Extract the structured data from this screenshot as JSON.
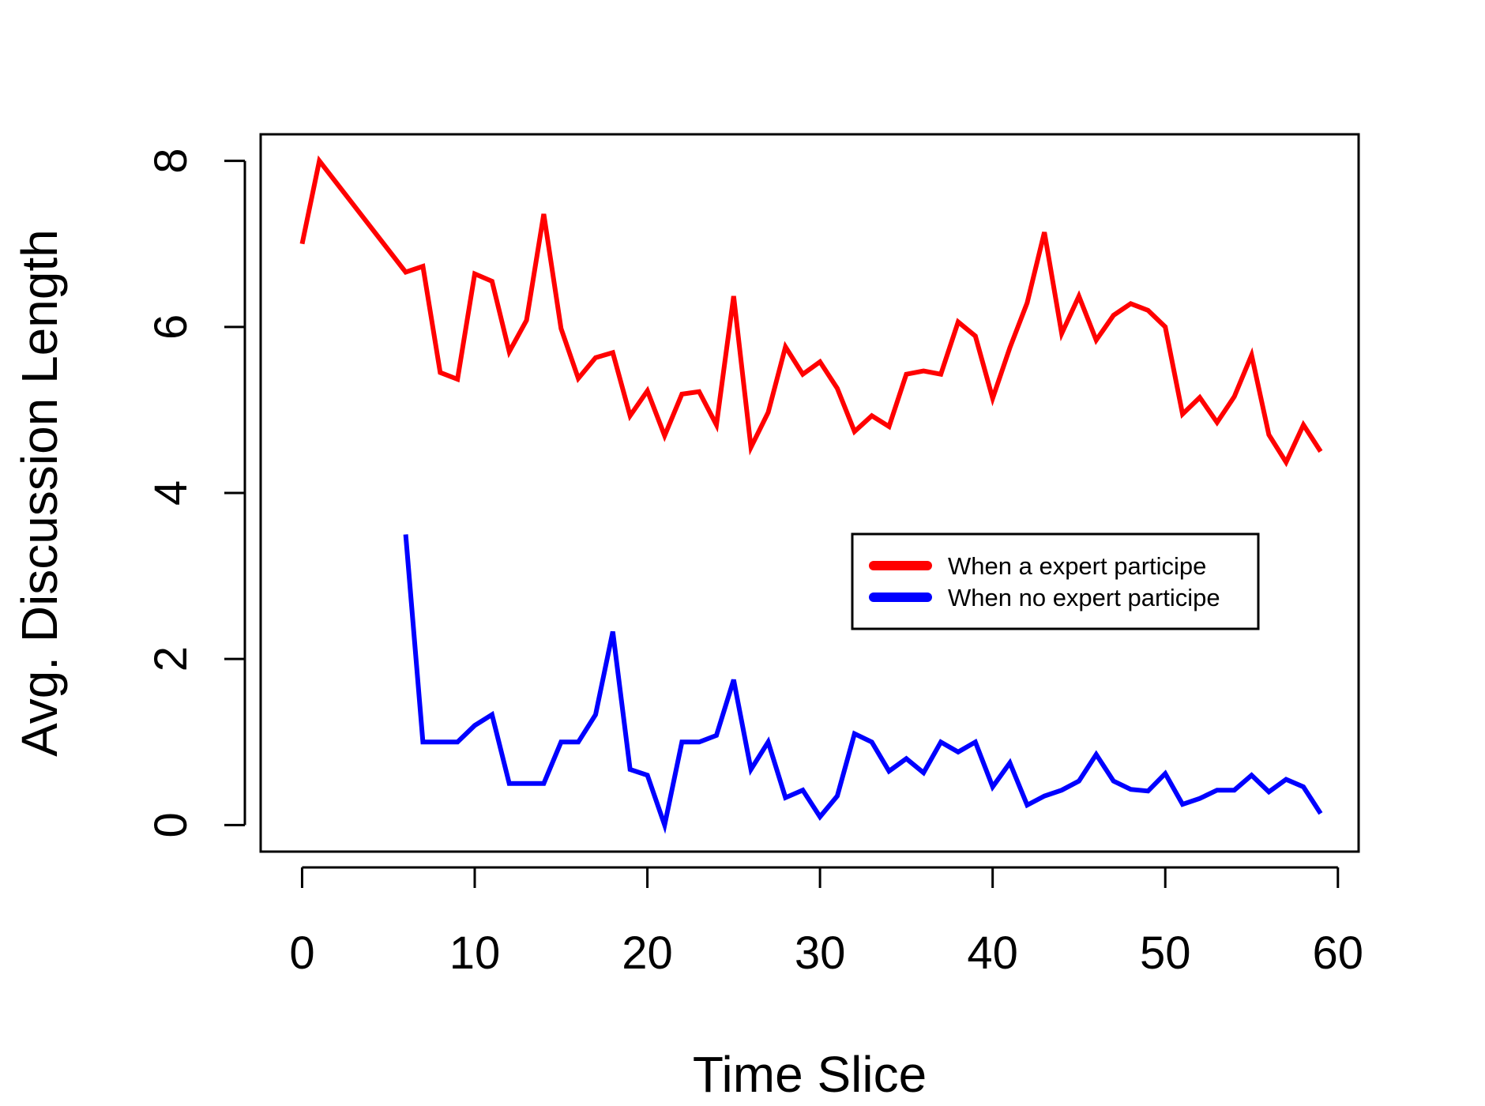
{
  "chart_data": {
    "type": "line",
    "title": "",
    "xlabel": "Time Slice",
    "ylabel": "Avg. Discussion Length",
    "xlim": [
      -2.4,
      61.2
    ],
    "ylim": [
      -0.32,
      8.32
    ],
    "xticks": [
      0,
      10,
      20,
      30,
      40,
      50,
      60
    ],
    "yticks": [
      0,
      2,
      4,
      6,
      8
    ],
    "xtick_labels": [
      "0",
      "10",
      "20",
      "30",
      "40",
      "50",
      "60"
    ],
    "ytick_labels": [
      "0",
      "2",
      "4",
      "6",
      "8"
    ],
    "grid": false,
    "legend_position": "center-right",
    "series": [
      {
        "name": "When a expert participe",
        "color": "#ff0000",
        "x": [
          0,
          1,
          6,
          7,
          8,
          9,
          10,
          11,
          12,
          13,
          14,
          15,
          16,
          17,
          18,
          19,
          20,
          21,
          22,
          23,
          24,
          25,
          26,
          27,
          28,
          29,
          30,
          31,
          32,
          33,
          34,
          35,
          36,
          37,
          38,
          39,
          40,
          41,
          42,
          43,
          44,
          45,
          46,
          47,
          48,
          49,
          50,
          51,
          52,
          53,
          54,
          55,
          56,
          57,
          58,
          59
        ],
        "y": [
          7.0,
          8.0,
          6.66,
          6.73,
          5.45,
          5.37,
          6.64,
          6.55,
          5.7,
          6.08,
          7.36,
          5.98,
          5.38,
          5.63,
          5.69,
          4.93,
          5.23,
          4.69,
          5.19,
          5.22,
          4.82,
          6.37,
          4.55,
          4.97,
          5.76,
          5.43,
          5.58,
          5.26,
          4.74,
          4.93,
          4.8,
          5.43,
          5.47,
          5.43,
          6.06,
          5.89,
          5.14,
          5.75,
          6.29,
          7.14,
          5.92,
          6.37,
          5.84,
          6.14,
          6.28,
          6.2,
          6.0,
          4.95,
          5.15,
          4.85,
          5.16,
          5.66,
          4.7,
          4.37,
          4.82,
          4.5
        ]
      },
      {
        "name": "When no expert participe",
        "color": "#0000ff",
        "x": [
          6,
          7,
          8,
          9,
          10,
          11,
          12,
          13,
          14,
          15,
          16,
          17,
          18,
          19,
          20,
          21,
          22,
          23,
          24,
          25,
          26,
          27,
          28,
          29,
          30,
          31,
          32,
          33,
          34,
          35,
          36,
          37,
          38,
          39,
          40,
          41,
          42,
          43,
          44,
          45,
          46,
          47,
          48,
          49,
          50,
          51,
          52,
          53,
          54,
          55,
          56,
          57,
          58,
          59
        ],
        "y": [
          3.5,
          1.0,
          1.0,
          1.0,
          1.2,
          1.33,
          0.5,
          0.5,
          0.5,
          1.0,
          1.0,
          1.33,
          2.33,
          0.67,
          0.6,
          0.0,
          1.0,
          1.0,
          1.08,
          1.75,
          0.67,
          1.0,
          0.33,
          0.42,
          0.1,
          0.35,
          1.1,
          1.0,
          0.65,
          0.8,
          0.63,
          1.0,
          0.88,
          1.0,
          0.46,
          0.75,
          0.24,
          0.35,
          0.42,
          0.53,
          0.85,
          0.53,
          0.43,
          0.41,
          0.62,
          0.25,
          0.32,
          0.42,
          0.42,
          0.6,
          0.4,
          0.55,
          0.46,
          0.14
        ]
      }
    ]
  }
}
